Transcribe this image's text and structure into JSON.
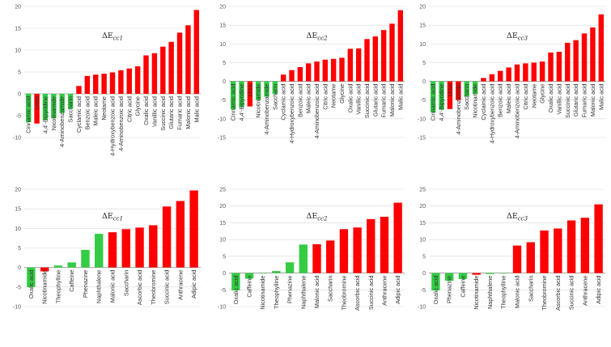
{
  "colors": {
    "positive": "#ff0000",
    "negative": "#33cc44",
    "grid": "#d9d9d9",
    "text": "#333333"
  },
  "chart_data": [
    {
      "type": "bar",
      "title_symbol": "ΔE",
      "title_sub": "cc1",
      "ylim": [
        -10,
        20
      ],
      "yticks": [
        -10,
        -5,
        0,
        5,
        10,
        15,
        20
      ],
      "grid": true,
      "categories": [
        "Cinnamic acid",
        "Urea",
        "4,4'-Bipyridine",
        "Nicotinamide",
        "4-Aminobenzamide",
        "Saccharin",
        "Cyclamic acid",
        "Benzoic acid",
        "Maleic acid",
        "Neotame",
        "4-Hydroxybenzoic acid",
        "4-Aminobenzoic acid",
        "Citric acid",
        "Glycine",
        "Oxalic acid",
        "Vanillic acid",
        "Succinic acid",
        "Glutaric acid",
        "Fumaric acid",
        "Malonic acid",
        "Malic acid"
      ],
      "values": [
        -6.5,
        -6.8,
        -6.0,
        -5.6,
        -4.4,
        -3.4,
        1.8,
        4.1,
        4.4,
        4.6,
        4.9,
        5.4,
        5.8,
        6.3,
        8.8,
        9.3,
        10.8,
        11.9,
        14.0,
        15.7,
        19.2
      ],
      "colors": [
        "neg",
        "pos",
        "neg",
        "neg",
        "neg",
        "neg",
        "pos",
        "pos",
        "pos",
        "pos",
        "pos",
        "pos",
        "pos",
        "pos",
        "pos",
        "pos",
        "pos",
        "pos",
        "pos",
        "pos",
        "pos"
      ]
    },
    {
      "type": "bar",
      "title_symbol": "ΔE",
      "title_sub": "cc2",
      "ylim": [
        -15,
        20
      ],
      "yticks": [
        -15,
        -10,
        -5,
        0,
        5,
        10,
        15,
        20
      ],
      "grid": true,
      "categories": [
        "Cinnamic acid",
        "4,4'-Bipyridine",
        "Urea",
        "Nicotinamide",
        "4-Aminobenzamide",
        "Saccharin",
        "Cyclamic acid",
        "4-Hydroxybenzoic acid",
        "Benzoic acid",
        "Maleic acid",
        "4-Aminobenzoic acid",
        "Citric acid",
        "Neotame",
        "Glycine",
        "Oxalic acid",
        "Vanillic acid",
        "Succinic acid",
        "Glutaric acid",
        "Fumaric acid",
        "Malonic acid",
        "Malic acid"
      ],
      "values": [
        -7.5,
        -6.9,
        -6.7,
        -5.0,
        -4.1,
        -3.4,
        1.8,
        3.0,
        3.8,
        4.8,
        5.3,
        5.8,
        6.0,
        6.3,
        8.7,
        8.8,
        11.3,
        12.0,
        13.7,
        15.4,
        19.0
      ],
      "colors": [
        "neg",
        "neg",
        "pos",
        "neg",
        "neg",
        "neg",
        "pos",
        "pos",
        "pos",
        "pos",
        "pos",
        "pos",
        "pos",
        "pos",
        "pos",
        "pos",
        "pos",
        "pos",
        "pos",
        "pos",
        "pos"
      ]
    },
    {
      "type": "bar",
      "title_symbol": "ΔE",
      "title_sub": "cc3",
      "ylim": [
        -15,
        20
      ],
      "yticks": [
        -15,
        -10,
        -5,
        0,
        5,
        10,
        15,
        20
      ],
      "grid": true,
      "categories": [
        "Cinnamic acid",
        "4,4'-Bipyridine",
        "Urea",
        "4-Aminobenzamide",
        "Saccharin",
        "Nicotinamide",
        "Cyclamic acid",
        "4-Hydroxybenzoic acid",
        "Benzoic acid",
        "Maleic acid",
        "4-Aminobenzoic acid",
        "Citric acid",
        "Neotame",
        "Glycine",
        "Oxalic acid",
        "Vanillic acid",
        "Succinic acid",
        "Glutaric acid",
        "Fumaric acid",
        "Malonic acid",
        "Malic acid"
      ],
      "values": [
        -8.3,
        -7.6,
        -7.4,
        -5.0,
        -4.1,
        -3.4,
        0.9,
        1.9,
        2.8,
        3.7,
        4.5,
        4.8,
        5.0,
        5.3,
        7.7,
        7.9,
        10.3,
        11.0,
        12.8,
        14.4,
        17.9
      ],
      "colors": [
        "neg",
        "neg",
        "pos",
        "pos",
        "neg",
        "neg",
        "pos",
        "pos",
        "pos",
        "pos",
        "pos",
        "pos",
        "pos",
        "pos",
        "pos",
        "pos",
        "pos",
        "pos",
        "pos",
        "pos",
        "pos"
      ]
    },
    {
      "type": "bar",
      "title_symbol": "ΔE",
      "title_sub": "cc1",
      "ylim": [
        -10,
        20
      ],
      "yticks": [
        -10,
        -5,
        0,
        5,
        10,
        15,
        20
      ],
      "grid": true,
      "categories": [
        "Oxalic acid",
        "Nicotinamide",
        "Theophylline",
        "Caffeine",
        "Phenazine",
        "Naphthalene",
        "Malonic acid",
        "Saccharin",
        "Ascorbic acid",
        "Theobromine",
        "Succinic acid",
        "Anthracene",
        "Adipic acid"
      ],
      "values": [
        -5.0,
        -1.0,
        0.5,
        1.3,
        4.5,
        8.6,
        9.0,
        9.8,
        10.2,
        10.8,
        15.6,
        17.0,
        19.7
      ],
      "colors": [
        "neg",
        "pos",
        "neg",
        "neg",
        "neg",
        "neg",
        "pos",
        "pos",
        "pos",
        "pos",
        "pos",
        "pos",
        "pos"
      ]
    },
    {
      "type": "bar",
      "title_symbol": "ΔE",
      "title_sub": "cc2",
      "ylim": [
        -10,
        25
      ],
      "yticks": [
        -10,
        -5,
        0,
        5,
        10,
        15,
        20,
        25
      ],
      "grid": true,
      "categories": [
        "Oxalic acid",
        "Caffeine",
        "Nicotinamide",
        "Theophylline",
        "Phenazine",
        "Naphthalene",
        "Malonic acid",
        "Saccharin",
        "Theobromine",
        "Ascorbic acid",
        "Succinic acid",
        "Anthracene",
        "Adipic acid"
      ],
      "values": [
        -5.2,
        -1.7,
        -0.1,
        0.6,
        3.2,
        8.5,
        8.6,
        9.7,
        13.1,
        13.6,
        16.1,
        16.8,
        21.0
      ],
      "colors": [
        "neg",
        "neg",
        "neg",
        "neg",
        "neg",
        "neg",
        "pos",
        "pos",
        "pos",
        "pos",
        "pos",
        "pos",
        "pos"
      ]
    },
    {
      "type": "bar",
      "title_symbol": "ΔE",
      "title_sub": "cc3",
      "ylim": [
        -10,
        25
      ],
      "yticks": [
        -10,
        -5,
        0,
        5,
        10,
        15,
        20,
        25
      ],
      "grid": true,
      "categories": [
        "Oxalic acid",
        "Phenazine",
        "Caffeine",
        "Nicotinamide",
        "Naphthalene",
        "Theophylline",
        "Malonic acid",
        "Saccharin",
        "Theobromine",
        "Ascorbic acid",
        "Succinic acid",
        "Anthracene",
        "Adipic acid"
      ],
      "values": [
        -5.2,
        -2.3,
        -1.8,
        -0.5,
        -0.3,
        0.0,
        8.2,
        9.2,
        12.7,
        13.3,
        15.7,
        16.5,
        20.5
      ],
      "colors": [
        "neg",
        "neg",
        "neg",
        "pos",
        "neg",
        "neg",
        "pos",
        "pos",
        "pos",
        "pos",
        "pos",
        "pos",
        "pos"
      ]
    }
  ]
}
